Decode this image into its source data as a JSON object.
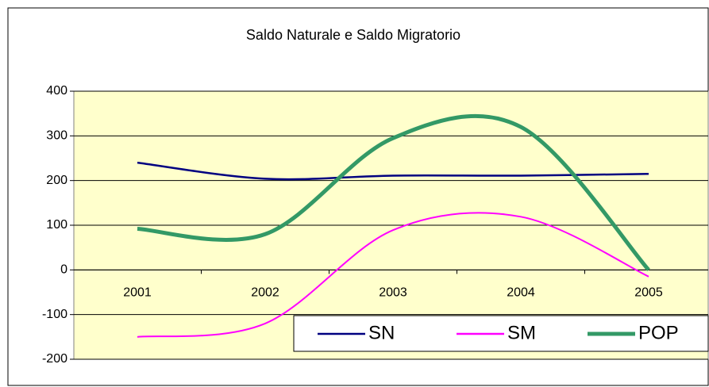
{
  "chart_data": {
    "type": "line",
    "title": "Saldo Naturale e Saldo Migratorio",
    "categories": [
      "2001",
      "2002",
      "2003",
      "2004",
      "2005"
    ],
    "series": [
      {
        "name": "SN",
        "color": "#000080",
        "values": [
          240,
          204,
          211,
          211,
          215
        ]
      },
      {
        "name": "SM",
        "color": "#ff00ff",
        "values": [
          -150,
          -120,
          89,
          119,
          -15
        ]
      },
      {
        "name": "POP",
        "color": "#339966",
        "values": [
          92,
          80,
          295,
          320,
          0
        ]
      }
    ],
    "ylim": [
      -200,
      400
    ],
    "yticks": [
      -200,
      -100,
      0,
      100,
      200,
      300,
      400
    ],
    "grid": true,
    "smooth": true,
    "legend": "bottom-right"
  }
}
